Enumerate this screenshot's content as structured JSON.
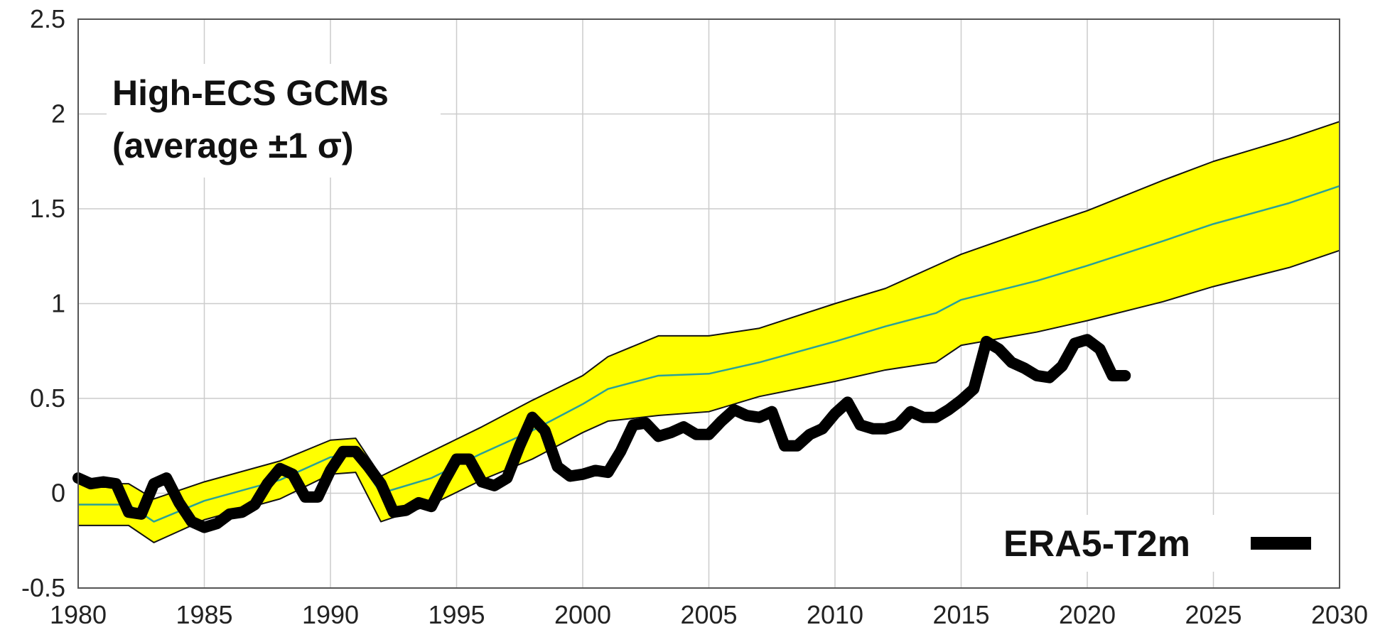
{
  "chart_data": {
    "type": "line",
    "title": "",
    "xlabel": "",
    "ylabel": "",
    "xlim": [
      1980,
      2030
    ],
    "ylim": [
      -0.5,
      2.5
    ],
    "x_ticks": [
      1980,
      1985,
      1990,
      1995,
      2000,
      2005,
      2010,
      2015,
      2020,
      2025,
      2030
    ],
    "y_ticks": [
      -0.5,
      0,
      0.5,
      1,
      1.5,
      2,
      2.5
    ],
    "x_tick_labels": [
      "1980",
      "1985",
      "1990",
      "1995",
      "2000",
      "2005",
      "2010",
      "2015",
      "2020",
      "2025",
      "2030"
    ],
    "y_tick_labels": [
      "-0.5",
      "0",
      "0.5",
      "1",
      "1.5",
      "2",
      "2.5"
    ],
    "grid": true,
    "annotation_line1": "High-ECS GCMs",
    "annotation_line2": "(average ±1 σ)",
    "colors": {
      "band_fill": "#ffff00",
      "band_edge": "#111111",
      "mean_line": "#2aa198",
      "observations": "#000000",
      "grid": "#cccccc"
    },
    "gcm_band": {
      "x": [
        1980,
        1982,
        1983,
        1985,
        1988,
        1990,
        1991,
        1992,
        1994,
        1996,
        1998,
        2000,
        2001,
        2003,
        2005,
        2007,
        2010,
        2012,
        2014,
        2015,
        2018,
        2020,
        2023,
        2025,
        2028,
        2030
      ],
      "mean": [
        -0.06,
        -0.06,
        -0.15,
        -0.04,
        0.07,
        0.19,
        0.2,
        0.0,
        0.08,
        0.21,
        0.33,
        0.47,
        0.55,
        0.62,
        0.63,
        0.69,
        0.8,
        0.88,
        0.95,
        1.02,
        1.12,
        1.2,
        1.33,
        1.42,
        1.53,
        1.62
      ],
      "upper": [
        0.05,
        0.05,
        -0.03,
        0.06,
        0.17,
        0.28,
        0.29,
        0.09,
        0.22,
        0.35,
        0.49,
        0.62,
        0.72,
        0.83,
        0.83,
        0.87,
        1.0,
        1.08,
        1.2,
        1.26,
        1.4,
        1.49,
        1.65,
        1.75,
        1.87,
        1.96
      ],
      "lower": [
        -0.17,
        -0.17,
        -0.26,
        -0.14,
        -0.03,
        0.1,
        0.11,
        -0.15,
        -0.06,
        0.07,
        0.18,
        0.32,
        0.38,
        0.41,
        0.43,
        0.51,
        0.59,
        0.65,
        0.69,
        0.78,
        0.85,
        0.91,
        1.01,
        1.09,
        1.19,
        1.28
      ]
    },
    "series": [
      {
        "name": "ERA5-T2m",
        "x": [
          1980.0,
          1980.5,
          1981.0,
          1981.5,
          1982.0,
          1982.5,
          1983.0,
          1983.5,
          1984.0,
          1984.5,
          1985.0,
          1985.5,
          1986.0,
          1986.5,
          1987.0,
          1987.5,
          1988.0,
          1988.5,
          1989.0,
          1989.5,
          1990.0,
          1990.5,
          1991.0,
          1991.5,
          1992.0,
          1992.5,
          1993.0,
          1993.5,
          1994.0,
          1994.5,
          1995.0,
          1995.5,
          1996.0,
          1996.5,
          1997.0,
          1997.5,
          1998.0,
          1998.5,
          1999.0,
          1999.5,
          2000.0,
          2000.5,
          2001.0,
          2001.5,
          2002.0,
          2002.5,
          2003.0,
          2003.5,
          2004.0,
          2004.5,
          2005.0,
          2005.5,
          2006.0,
          2006.5,
          2007.0,
          2007.5,
          2008.0,
          2008.5,
          2009.0,
          2009.5,
          2010.0,
          2010.5,
          2011.0,
          2011.5,
          2012.0,
          2012.5,
          2013.0,
          2013.5,
          2014.0,
          2014.5,
          2015.0,
          2015.5,
          2016.0,
          2016.5,
          2017.0,
          2017.5,
          2018.0,
          2018.5,
          2019.0,
          2019.5,
          2020.0,
          2020.5,
          2021.0,
          2021.5
        ],
        "y": [
          0.08,
          0.05,
          0.06,
          0.05,
          -0.1,
          -0.11,
          0.05,
          0.08,
          -0.05,
          -0.15,
          -0.18,
          -0.16,
          -0.11,
          -0.1,
          -0.06,
          0.05,
          0.13,
          0.1,
          -0.02,
          -0.02,
          0.12,
          0.22,
          0.22,
          0.14,
          0.05,
          -0.1,
          -0.09,
          -0.05,
          -0.07,
          0.06,
          0.18,
          0.18,
          0.06,
          0.04,
          0.08,
          0.25,
          0.4,
          0.33,
          0.14,
          0.09,
          0.1,
          0.12,
          0.11,
          0.22,
          0.36,
          0.37,
          0.3,
          0.32,
          0.35,
          0.31,
          0.31,
          0.38,
          0.44,
          0.41,
          0.4,
          0.43,
          0.25,
          0.25,
          0.31,
          0.34,
          0.42,
          0.48,
          0.36,
          0.34,
          0.34,
          0.36,
          0.43,
          0.4,
          0.4,
          0.44,
          0.49,
          0.55,
          0.8,
          0.76,
          0.69,
          0.66,
          0.62,
          0.61,
          0.67,
          0.79,
          0.81,
          0.76,
          0.62,
          0.62
        ]
      }
    ],
    "legend": {
      "position": "bottom-right",
      "label": "ERA5-T2m"
    }
  }
}
